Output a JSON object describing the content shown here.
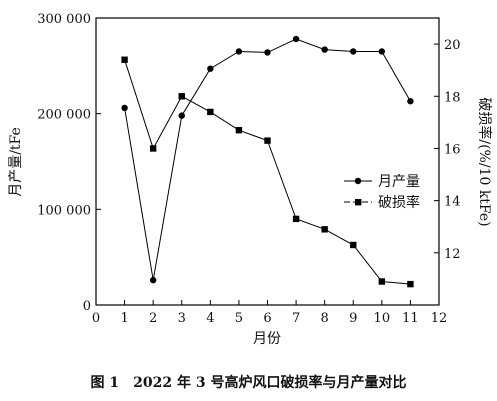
{
  "caption": "图 1　2022 年 3 号高炉风口破损率与月产量对比",
  "chart_data": {
    "type": "line",
    "x": [
      1,
      2,
      3,
      4,
      5,
      6,
      7,
      8,
      9,
      10,
      11
    ],
    "xlabel": "月份",
    "xlim": [
      0,
      12
    ],
    "xticks": [
      0,
      1,
      2,
      3,
      4,
      5,
      6,
      7,
      8,
      9,
      10,
      11,
      12
    ],
    "ylabel": "月产量/tFe",
    "ylim": [
      0,
      300000
    ],
    "yticks": [
      0,
      100000,
      200000,
      300000
    ],
    "ytick_labels": [
      "0",
      "100 000",
      "200 000",
      "300 000"
    ],
    "y2label": "破损率/(%/10 ktFe)",
    "y2lim": [
      10,
      21
    ],
    "y2ticks": [
      10,
      12,
      14,
      16,
      18,
      20
    ],
    "y2tick_labels": [
      "",
      "12",
      "14",
      "16",
      "18",
      "20"
    ],
    "grid": false,
    "legend_position": "right-middle",
    "series": [
      {
        "name": "月产量",
        "axis": "left",
        "marker": "circle",
        "color": "#000000",
        "values": [
          206000,
          26000,
          198000,
          247000,
          265000,
          264000,
          278000,
          267000,
          265000,
          265000,
          213000
        ]
      },
      {
        "name": "破损率",
        "axis": "right",
        "marker": "square",
        "color": "#000000",
        "values": [
          19.4,
          16.0,
          18.0,
          17.4,
          16.7,
          16.3,
          13.3,
          12.9,
          12.3,
          10.9,
          10.8
        ]
      }
    ]
  }
}
